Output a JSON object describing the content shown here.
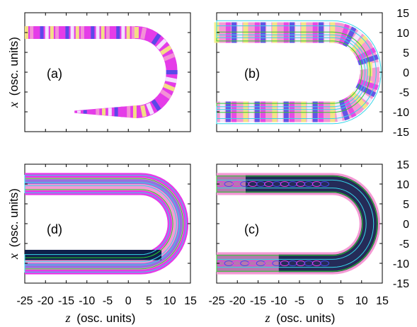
{
  "chart_data": {
    "type": "heatmap",
    "panels": [
      {
        "label": "(a)",
        "trajectory": "upper-band-turn-then-thin-lower-tail",
        "coloring": "banded-stripes"
      },
      {
        "label": "(b)",
        "trajectory": "full-u-band",
        "coloring": "banded-stripes-with-contours"
      },
      {
        "label": "(d)",
        "trajectory": "full-u-band",
        "coloring": "smooth-with-contours"
      },
      {
        "label": "(c)",
        "trajectory": "full-u-band",
        "coloring": "dark-blue-with-vortex-contours"
      }
    ],
    "xlabel_var": "z",
    "xlabel_units": "(osc. units)",
    "ylabel_var": "x",
    "ylabel_units": "(osc. units)",
    "x_ticks": [
      -25,
      -20,
      -15,
      -10,
      -5,
      0,
      5,
      10,
      15
    ],
    "y_ticks": [
      15,
      10,
      5,
      0,
      -5,
      -10,
      -15
    ],
    "xlim": [
      -25,
      15
    ],
    "ylim": [
      -15,
      15
    ],
    "colors": {
      "magenta": "#e43ce8",
      "pink": "#f49ad4",
      "yellow": "#f4f07a",
      "blue": "#4a4ae8",
      "navy": "#0e1f4a",
      "white": "#f4f4ff",
      "green": "#2bd12b",
      "cyan": "#35d6e8"
    }
  }
}
